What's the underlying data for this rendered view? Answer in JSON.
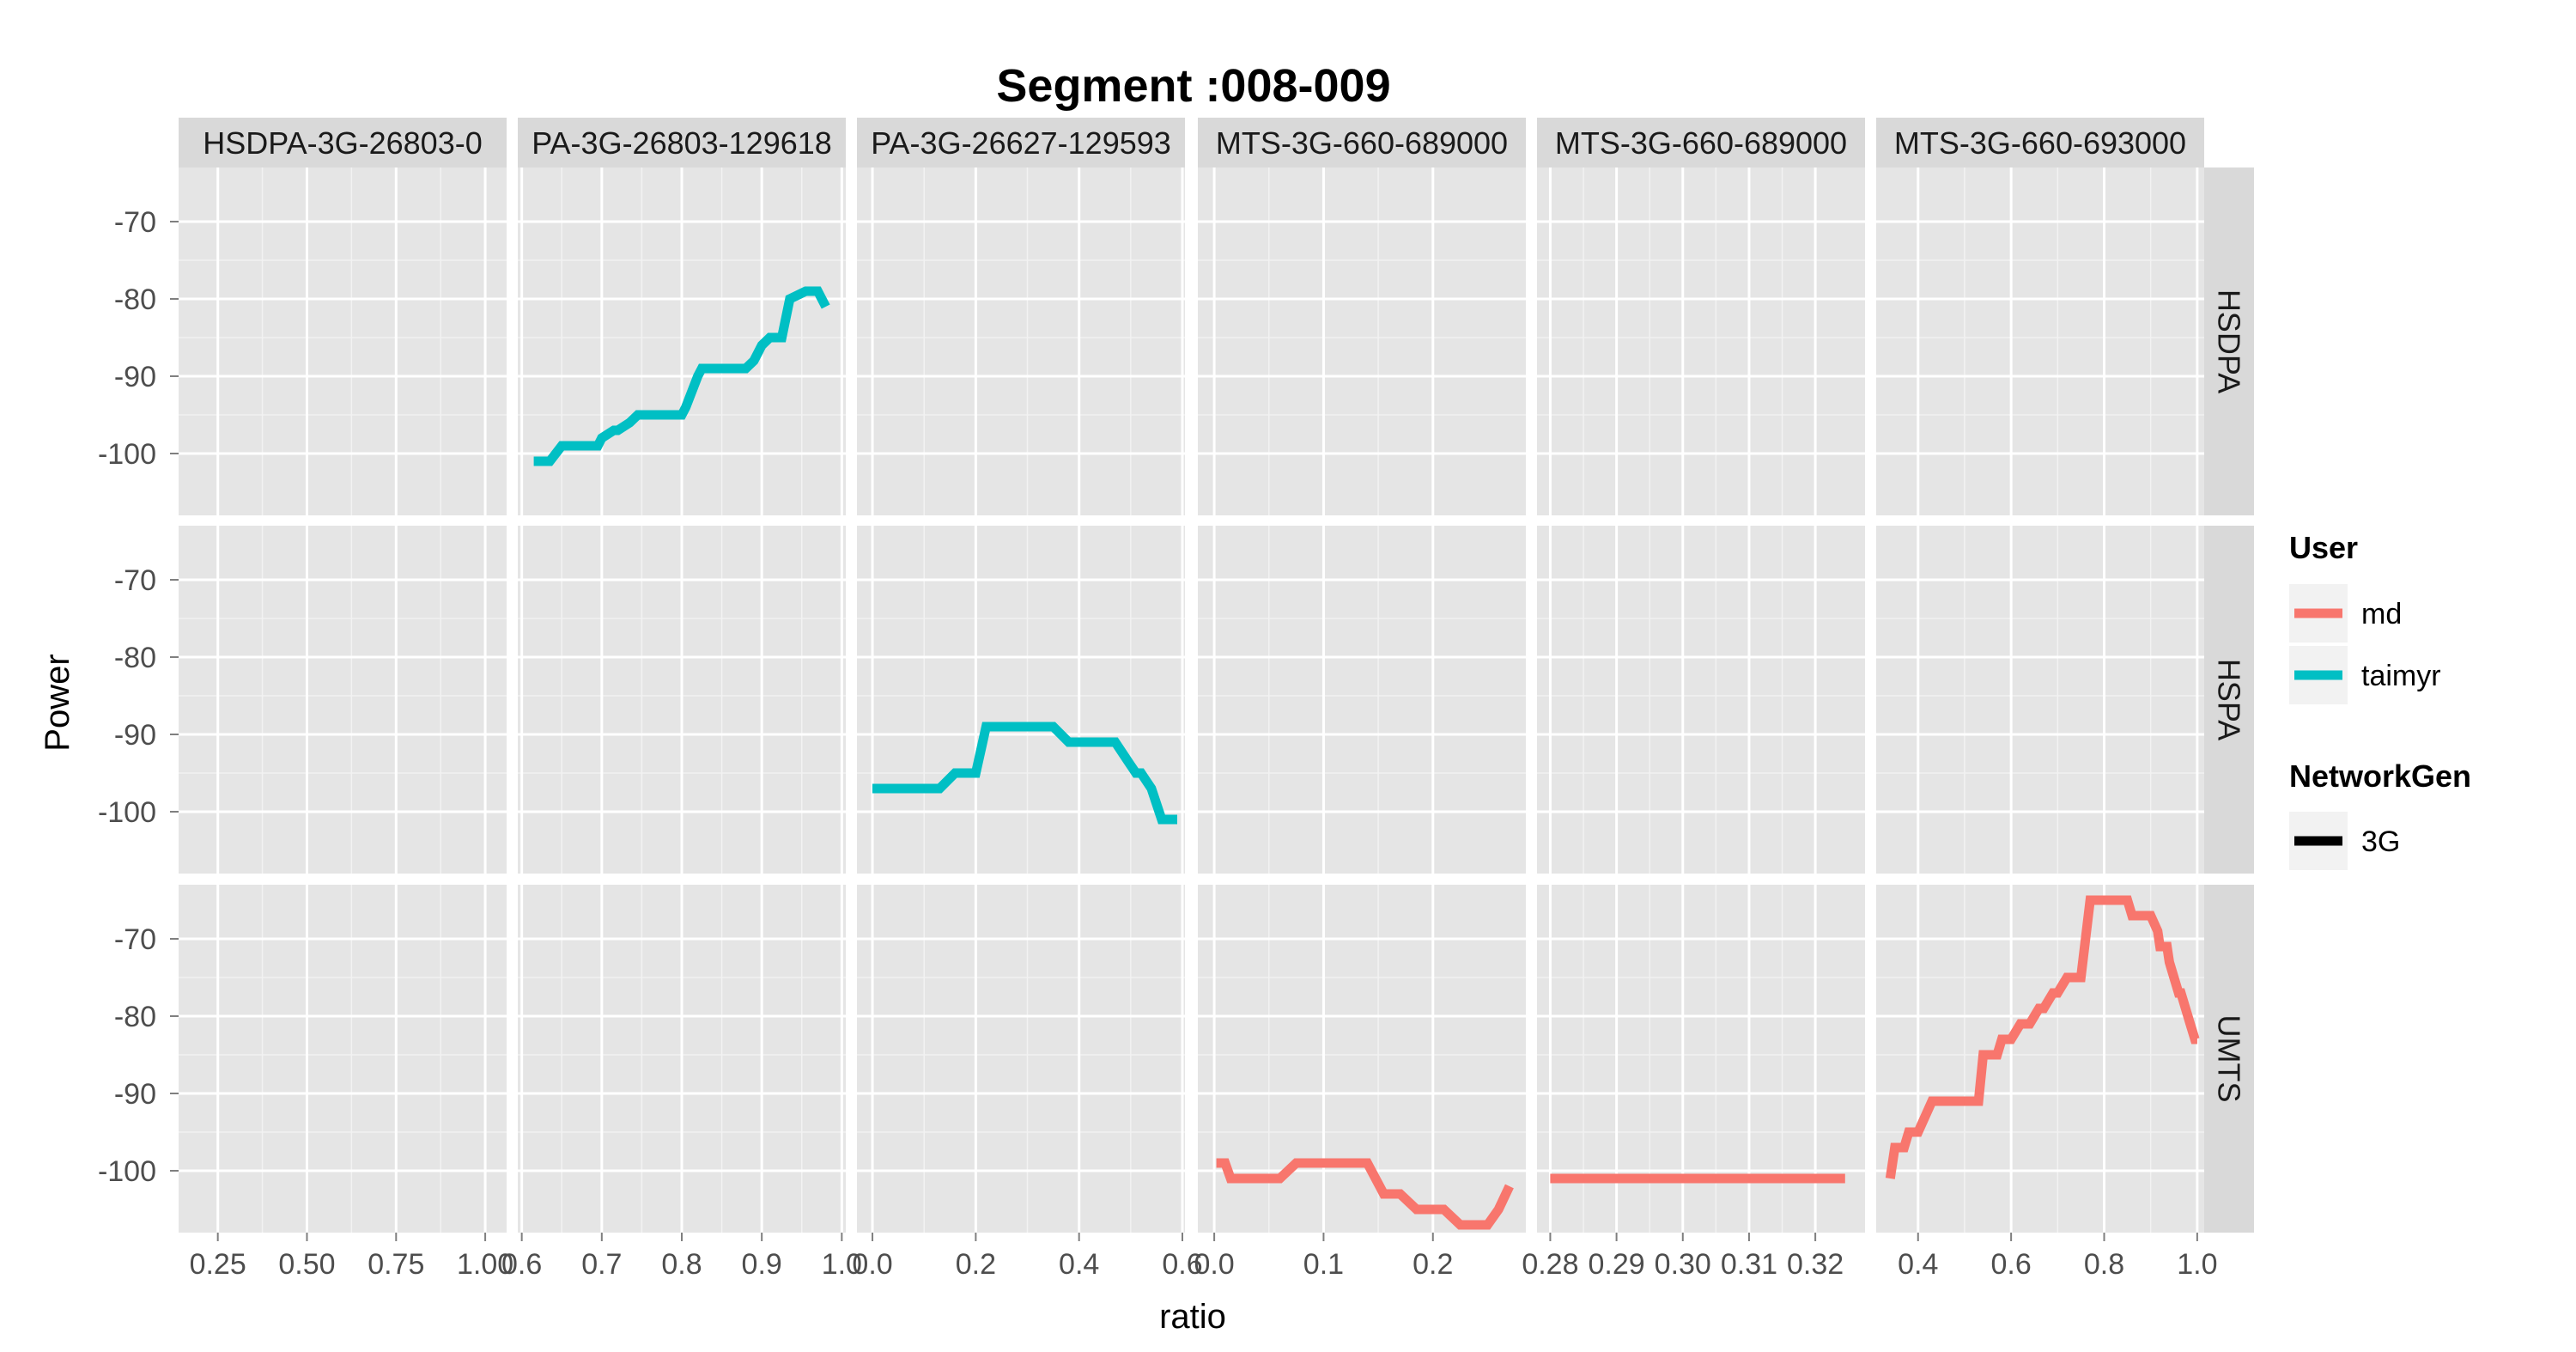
{
  "chart_data": {
    "type": "line",
    "title": "Segment :008-009",
    "xlabel": "ratio",
    "ylabel": "Power",
    "grid": true,
    "legend_placement": "right",
    "y_ticks": [
      -70,
      -80,
      -90,
      -100
    ],
    "ylim": [
      -108,
      -63
    ],
    "columns": [
      {
        "strip_label": "HSDPA-3G-26803-0",
        "xlim": [
          0.14,
          1.06
        ],
        "x_ticks": [
          0.25,
          0.5,
          0.75,
          1.0
        ],
        "x_tick_labels": [
          "0.25",
          "0.50",
          "0.75",
          "1.00"
        ]
      },
      {
        "strip_label": "PA-3G-26803-129618",
        "xlim": [
          0.595,
          1.005
        ],
        "x_ticks": [
          0.6,
          0.7,
          0.8,
          0.9,
          1.0
        ],
        "x_tick_labels": [
          "0.6",
          "0.7",
          "0.8",
          "0.9",
          "1.0"
        ]
      },
      {
        "strip_label": "PA-3G-26627-129593",
        "xlim": [
          -0.03,
          0.605
        ],
        "x_ticks": [
          0.0,
          0.2,
          0.4,
          0.6
        ],
        "x_tick_labels": [
          "0.0",
          "0.2",
          "0.4",
          "0.6"
        ]
      },
      {
        "strip_label": "MTS-3G-660-689000",
        "xlim": [
          -0.015,
          0.285
        ],
        "x_ticks": [
          0.0,
          0.1,
          0.2
        ],
        "x_tick_labels": [
          "0.0",
          "0.1",
          "0.2"
        ]
      },
      {
        "strip_label": "MTS-3G-660-689000",
        "xlim": [
          0.278,
          0.3275
        ],
        "x_ticks": [
          0.28,
          0.29,
          0.3,
          0.31,
          0.32
        ],
        "x_tick_labels": [
          "0.28",
          "0.29",
          "0.30",
          "0.31",
          "0.32"
        ]
      },
      {
        "strip_label": "MTS-3G-660-693000",
        "xlim": [
          0.31,
          1.015
        ],
        "x_ticks": [
          0.4,
          0.6,
          0.8,
          1.0
        ],
        "x_tick_labels": [
          "0.4",
          "0.6",
          "0.8",
          "1.0"
        ]
      }
    ],
    "rows": [
      {
        "strip_label": "HSDPA"
      },
      {
        "strip_label": "HSPA"
      },
      {
        "strip_label": "UMTS"
      }
    ],
    "series": [
      {
        "user": "taimyr",
        "color": "#00BFC4",
        "col": 1,
        "row": 0,
        "x": [
          0.615,
          0.635,
          0.65,
          0.695,
          0.7,
          0.715,
          0.72,
          0.735,
          0.745,
          0.8,
          0.805,
          0.82,
          0.825,
          0.88,
          0.89,
          0.9,
          0.91,
          0.925,
          0.935,
          0.955,
          0.96,
          0.97,
          0.98
        ],
        "y": [
          -101,
          -101,
          -99,
          -99,
          -98,
          -97,
          -97,
          -96,
          -95,
          -95,
          -94,
          -90,
          -89,
          -89,
          -88,
          -86,
          -85,
          -85,
          -80,
          -79,
          -79,
          -79,
          -81
        ]
      },
      {
        "user": "taimyr",
        "color": "#00BFC4",
        "col": 2,
        "row": 1,
        "x": [
          0.0,
          0.13,
          0.16,
          0.2,
          0.22,
          0.35,
          0.38,
          0.47,
          0.5,
          0.51,
          0.52,
          0.53,
          0.54,
          0.56,
          0.59
        ],
        "y": [
          -97,
          -97,
          -95,
          -95,
          -89,
          -89,
          -91,
          -91,
          -94,
          -95,
          -95,
          -96,
          -97,
          -101,
          -101
        ]
      },
      {
        "user": "md",
        "color": "#F8766D",
        "col": 3,
        "row": 2,
        "x": [
          0.002,
          0.01,
          0.015,
          0.06,
          0.075,
          0.14,
          0.155,
          0.17,
          0.185,
          0.21,
          0.225,
          0.25,
          0.26,
          0.27
        ],
        "y": [
          -99,
          -99,
          -101,
          -101,
          -99,
          -99,
          -103,
          -103,
          -105,
          -105,
          -107,
          -107,
          -105,
          -102
        ]
      },
      {
        "user": "md",
        "color": "#F8766D",
        "col": 4,
        "row": 2,
        "x": [
          0.28,
          0.3245
        ],
        "y": [
          -101,
          -101
        ]
      },
      {
        "user": "md",
        "color": "#F8766D",
        "col": 5,
        "row": 2,
        "x": [
          0.34,
          0.35,
          0.37,
          0.38,
          0.4,
          0.43,
          0.45,
          0.53,
          0.54,
          0.57,
          0.58,
          0.6,
          0.62,
          0.64,
          0.66,
          0.67,
          0.69,
          0.7,
          0.72,
          0.74,
          0.75,
          0.77,
          0.79,
          0.8,
          0.85,
          0.86,
          0.87,
          0.89,
          0.9,
          0.915,
          0.92,
          0.935,
          0.94,
          0.95,
          0.96,
          0.965,
          0.975,
          0.985,
          0.995,
          1.0
        ],
        "y": [
          -101,
          -97,
          -97,
          -95,
          -95,
          -91,
          -91,
          -91,
          -85,
          -85,
          -83,
          -83,
          -81,
          -81,
          -79,
          -79,
          -77,
          -77,
          -75,
          -75,
          -75,
          -65,
          -65,
          -65,
          -65,
          -67,
          -67,
          -67,
          -67,
          -69,
          -71,
          -71,
          -73,
          -75,
          -77,
          -77,
          -79,
          -81,
          -83,
          -83
        ]
      }
    ],
    "legend": {
      "user_title": "User",
      "user_entries": [
        {
          "label": "md",
          "color": "#F8766D"
        },
        {
          "label": "taimyr",
          "color": "#00BFC4"
        }
      ],
      "network_title": "NetworkGen",
      "network_entries": [
        {
          "label": "3G",
          "color": "#000000"
        }
      ]
    }
  }
}
